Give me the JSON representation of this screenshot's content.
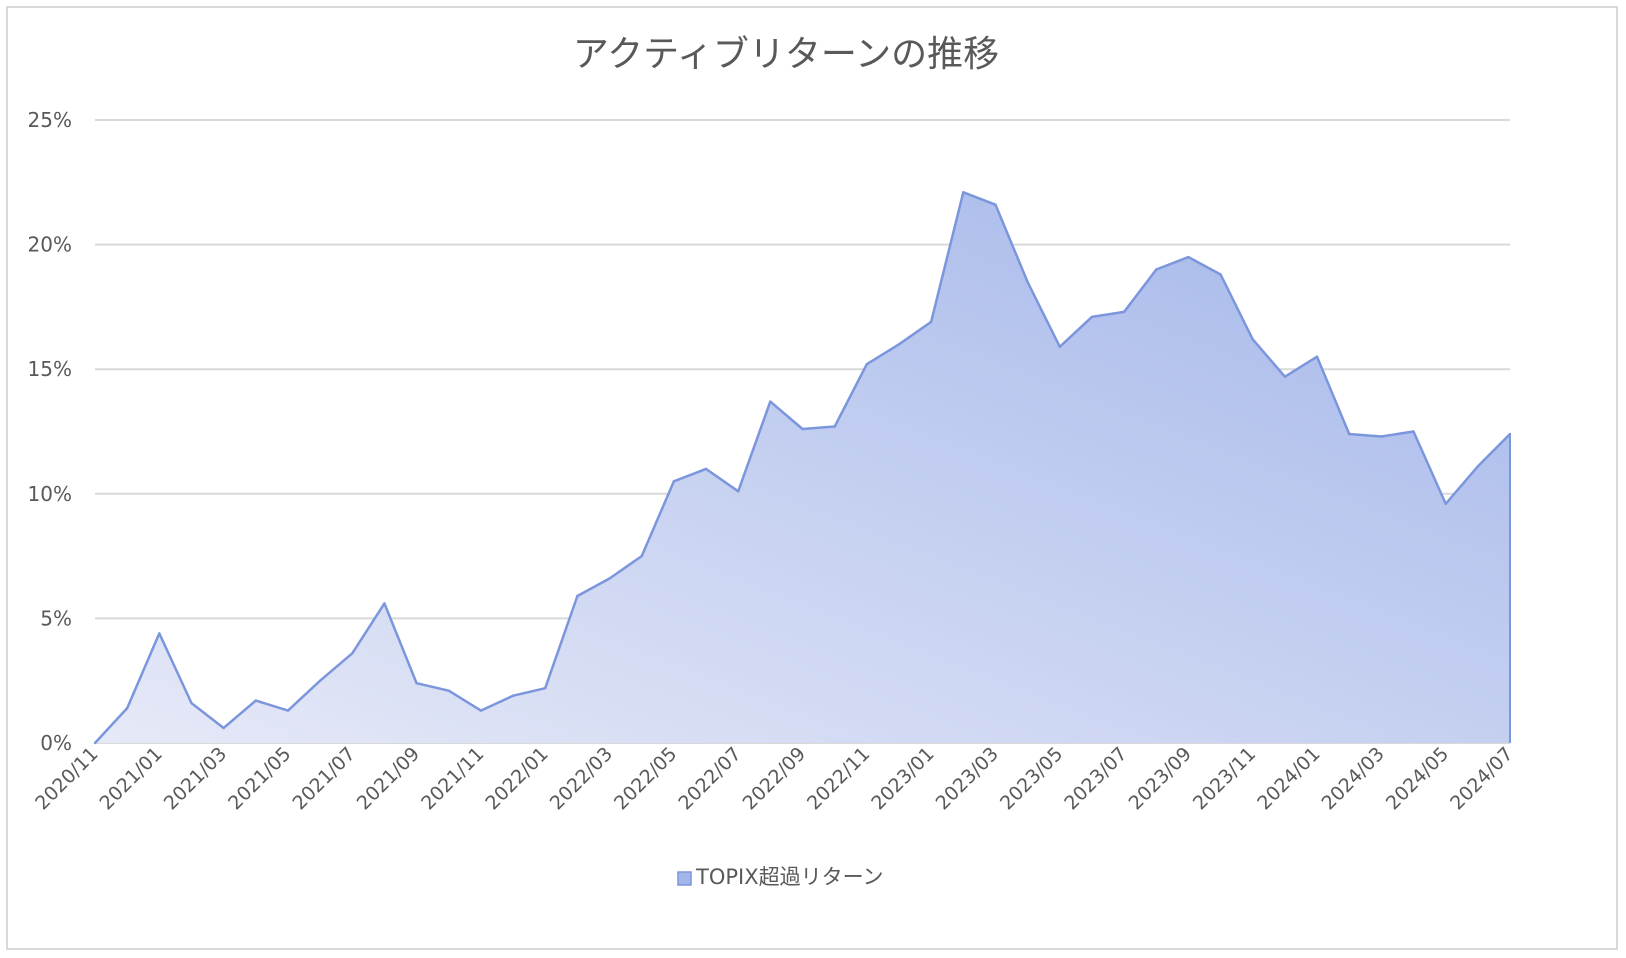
{
  "chart_data": {
    "type": "area",
    "title": "アクティブリターンの推移",
    "xlabel": "",
    "ylabel": "",
    "y_unit": "%",
    "ylim": [
      0,
      25
    ],
    "y_ticks": [
      0,
      5,
      10,
      15,
      20,
      25
    ],
    "y_tick_labels": [
      "0%",
      "5%",
      "10%",
      "15%",
      "20%",
      "25%"
    ],
    "grid": true,
    "legend_position": "bottom",
    "x_tick_labels": [
      "2020/11",
      "2021/01",
      "2021/03",
      "2021/05",
      "2021/07",
      "2021/09",
      "2021/11",
      "2022/01",
      "2022/03",
      "2022/05",
      "2022/07",
      "2022/09",
      "2022/11",
      "2023/01",
      "2023/03",
      "2023/05",
      "2023/07",
      "2023/09",
      "2023/11",
      "2024/01",
      "2024/03",
      "2024/05",
      "2024/07"
    ],
    "x": [
      "2020/11",
      "2020/12",
      "2021/01",
      "2021/02",
      "2021/03",
      "2021/04",
      "2021/05",
      "2021/06",
      "2021/07",
      "2021/08",
      "2021/09",
      "2021/10",
      "2021/11",
      "2021/12",
      "2022/01",
      "2022/02",
      "2022/03",
      "2022/04",
      "2022/05",
      "2022/06",
      "2022/07",
      "2022/08",
      "2022/09",
      "2022/10",
      "2022/11",
      "2022/12",
      "2023/01",
      "2023/02",
      "2023/03",
      "2023/04",
      "2023/05",
      "2023/06",
      "2023/07",
      "2023/08",
      "2023/09",
      "2023/10",
      "2023/11",
      "2023/12",
      "2024/01",
      "2024/02",
      "2024/03",
      "2024/04",
      "2024/05",
      "2024/06",
      "2024/07"
    ],
    "series": [
      {
        "name": "TOPIX超過リターン",
        "color": "#7b96dc",
        "fill_start": "#e6e9f7",
        "fill_end": "#a3b6ea",
        "values": [
          0.0,
          1.4,
          4.4,
          1.6,
          0.6,
          1.7,
          1.3,
          2.5,
          3.6,
          5.6,
          2.4,
          2.1,
          1.3,
          1.9,
          2.2,
          5.9,
          6.6,
          7.5,
          10.5,
          11.0,
          10.1,
          13.7,
          12.6,
          12.7,
          15.2,
          16.0,
          16.9,
          22.1,
          21.6,
          18.5,
          15.9,
          17.1,
          17.3,
          19.0,
          19.5,
          18.8,
          16.2,
          14.7,
          15.5,
          12.4,
          12.3,
          12.5,
          9.6,
          11.1,
          12.4
        ]
      }
    ]
  }
}
